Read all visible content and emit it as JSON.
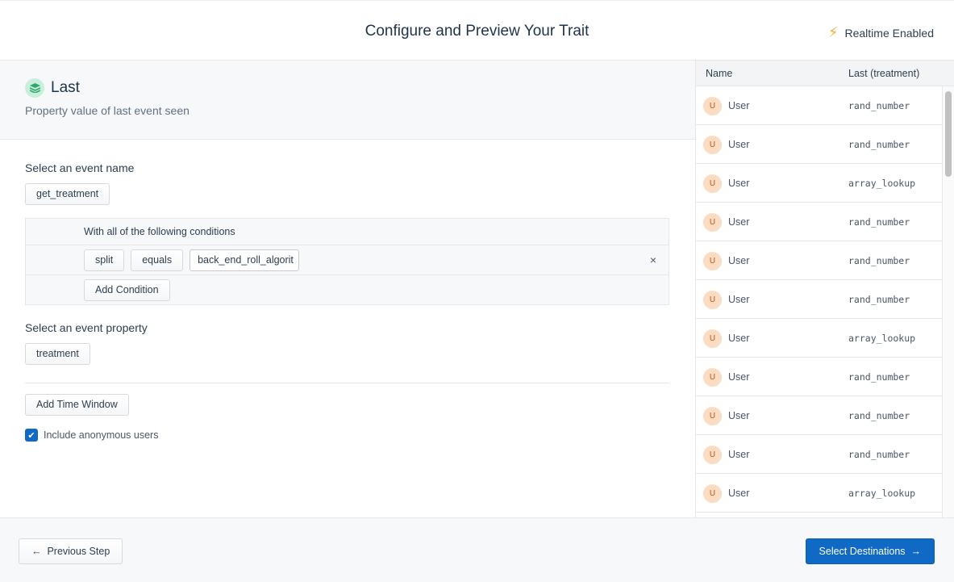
{
  "header": {
    "title": "Configure and Preview Your Trait",
    "realtime_label": "Realtime Enabled",
    "realtime_icon": "lightning-bolt-icon"
  },
  "trait": {
    "title": "Last",
    "description": "Property value of last event seen",
    "icon": "layers-icon"
  },
  "event": {
    "label": "Select an event name",
    "value": "get_treatment"
  },
  "conditions": {
    "heading": "With all of the following conditions",
    "items": [
      {
        "property": "split",
        "operator": "equals",
        "value": "back_end_roll_algorit"
      }
    ],
    "add_label": "Add Condition",
    "remove_icon": "×"
  },
  "property": {
    "label": "Select an event property",
    "value": "treatment"
  },
  "time_window_label": "Add Time Window",
  "anonymous": {
    "label": "Include anonymous users",
    "checked": true
  },
  "preview": {
    "columns": [
      "Name",
      "Last (treatment)"
    ],
    "rows": [
      {
        "avatar": "U",
        "name": "User",
        "value": "rand_number"
      },
      {
        "avatar": "U",
        "name": "User",
        "value": "rand_number"
      },
      {
        "avatar": "U",
        "name": "User",
        "value": "array_lookup"
      },
      {
        "avatar": "U",
        "name": "User",
        "value": "rand_number"
      },
      {
        "avatar": "U",
        "name": "User",
        "value": "rand_number"
      },
      {
        "avatar": "U",
        "name": "User",
        "value": "rand_number"
      },
      {
        "avatar": "U",
        "name": "User",
        "value": "array_lookup"
      },
      {
        "avatar": "U",
        "name": "User",
        "value": "rand_number"
      },
      {
        "avatar": "U",
        "name": "User",
        "value": "rand_number"
      },
      {
        "avatar": "U",
        "name": "User",
        "value": "rand_number"
      },
      {
        "avatar": "U",
        "name": "User",
        "value": "array_lookup"
      }
    ]
  },
  "footer": {
    "prev_label": "Previous Step",
    "next_label": "Select Destinations"
  },
  "colors": {
    "primary": "#1069c5",
    "bolt": "#f2b233",
    "avatar_bg": "#fbdcc3",
    "trait_icon_bg": "#c9eedc"
  }
}
